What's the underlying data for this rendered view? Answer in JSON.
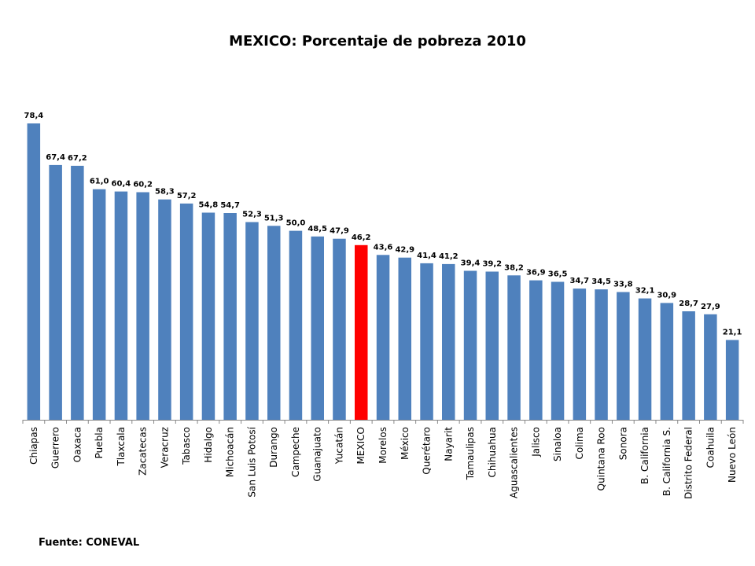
{
  "chart_data": {
    "type": "bar",
    "title": "MEXICO: Porcentaje de pobreza 2010",
    "source": "Fuente: CONEVAL",
    "categories": [
      "Chiapas",
      "Guerrero",
      "Oaxaca",
      "Puebla",
      "Tlaxcala",
      "Zacatecas",
      "Veracruz",
      "Tabasco",
      "Hidalgo",
      "Michoacán",
      "San Luis Potosí",
      "Durango",
      "Campeche",
      "Guanajuato",
      "Yucatán",
      "MEXICO",
      "Morelos",
      "México",
      "Querétaro",
      "Nayarit",
      "Tamaulipas",
      "Chihuahua",
      "Aguascalientes",
      "Jalisco",
      "Sinaloa",
      "Colima",
      "Quintana Roo",
      "Sonora",
      "B. California",
      "B. California S.",
      "Distrito Federal",
      "Coahuila",
      "Nuevo León"
    ],
    "values": [
      78.4,
      67.4,
      67.2,
      61.0,
      60.4,
      60.2,
      58.3,
      57.2,
      54.8,
      54.7,
      52.3,
      51.3,
      50.0,
      48.5,
      47.9,
      46.2,
      43.6,
      42.9,
      41.4,
      41.2,
      39.4,
      39.2,
      38.2,
      36.9,
      36.5,
      34.7,
      34.5,
      33.8,
      32.1,
      30.9,
      28.7,
      27.9,
      21.1
    ],
    "value_labels": [
      "78,4",
      "67,4",
      "67,2",
      "61,0",
      "60,4",
      "60,2",
      "58,3",
      "57,2",
      "54,8",
      "54,7",
      "52,3",
      "51,3",
      "50,0",
      "48,5",
      "47,9",
      "46,2",
      "43,6",
      "42,9",
      "41,4",
      "41,2",
      "39,4",
      "39,2",
      "38,2",
      "36,9",
      "36,5",
      "34,7",
      "34,5",
      "33,8",
      "32,1",
      "30,9",
      "28,7",
      "27,9",
      "21,1"
    ],
    "ylim": [
      0,
      80
    ],
    "grid": false,
    "colors": {
      "default": "#4F81BD",
      "highlight": "#FF0000"
    },
    "highlight_category": "MEXICO"
  }
}
